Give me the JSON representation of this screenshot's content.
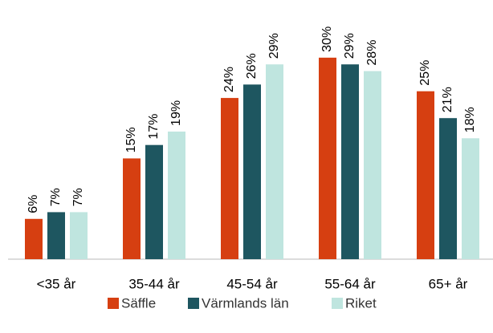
{
  "chart_data": {
    "type": "bar",
    "categories": [
      "<35 år",
      "35-44 år",
      "45-54 år",
      "55-64 år",
      "65+ år"
    ],
    "series": [
      {
        "name": "Säffle",
        "color": "#d63f11",
        "label_color": "#d63f11",
        "values": [
          6,
          15,
          24,
          30,
          25
        ],
        "value_labels": [
          "6%",
          "15%",
          "24%",
          "30%",
          "25%"
        ]
      },
      {
        "name": "Värmlands län",
        "color": "#1e5660",
        "label_color": "#1e5660",
        "values": [
          7,
          17,
          26,
          29,
          21
        ],
        "value_labels": [
          "7%",
          "17%",
          "26%",
          "29%",
          "21%"
        ]
      },
      {
        "name": "Riket",
        "color": "#bfe5df",
        "label_color": "#3f807d",
        "values": [
          7,
          19,
          29,
          28,
          18
        ],
        "value_labels": [
          "7%",
          "19%",
          "29%",
          "28%",
          "18%"
        ]
      }
    ],
    "ylim": [
      0,
      35
    ]
  }
}
